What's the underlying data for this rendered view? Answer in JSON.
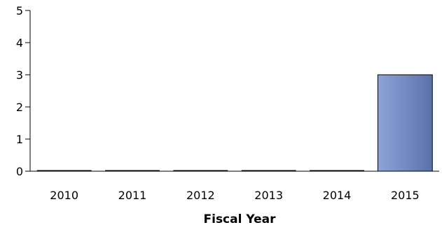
{
  "chart_data": {
    "type": "bar",
    "categories": [
      "2010",
      "2011",
      "2012",
      "2013",
      "2014",
      "2015"
    ],
    "values": [
      0,
      0,
      0,
      0,
      0,
      3
    ],
    "xlabel": "Fiscal Year",
    "ylabel": "",
    "ylim": [
      0,
      5
    ],
    "yticks": [
      0,
      1,
      2,
      3,
      4,
      5
    ],
    "grid": false,
    "colors": {
      "bar_light": "#8ea4d8",
      "bar_dark": "#5a72aa",
      "bar_stroke": "#000000",
      "axis": "#000000"
    }
  }
}
